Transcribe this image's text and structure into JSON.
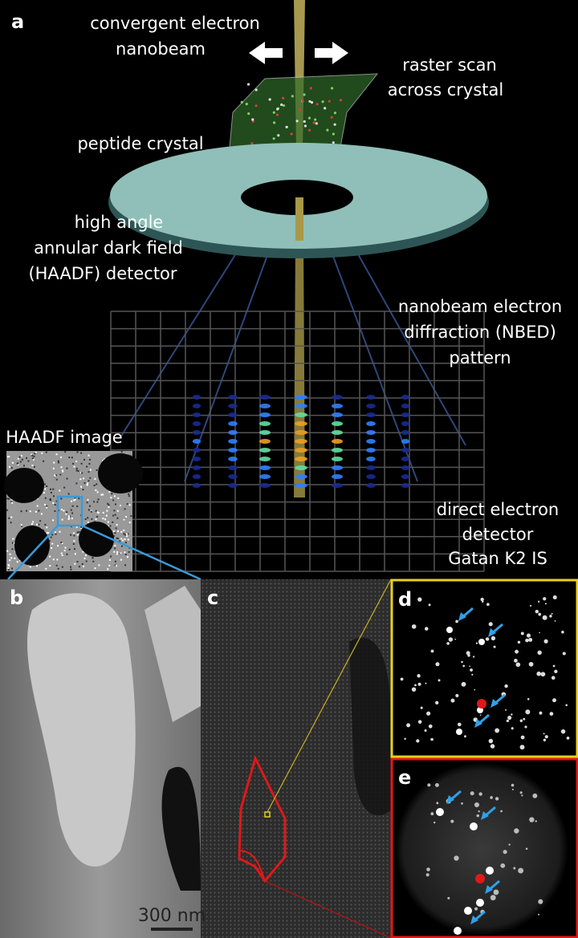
{
  "figure": {
    "panel_a": {
      "label": "a",
      "beam": [
        "convergent electron",
        "nanobeam"
      ],
      "raster": [
        "raster scan",
        "across crystal"
      ],
      "crystal": "peptide crystal",
      "haadf_detector": [
        "high angle",
        "annular dark field",
        "(HAADF) detector"
      ],
      "nbed": [
        "nanobeam electron",
        "diffraction (NBED)",
        "pattern"
      ],
      "haadf_image": "HAADF image",
      "direct_detector": [
        "direct electron",
        "detector",
        "Gatan K2 IS"
      ]
    },
    "panel_b": {
      "label": "b",
      "scale_bar": "300 nm"
    },
    "panel_c": {
      "label": "c"
    },
    "panel_d": {
      "label": "d"
    },
    "panel_e": {
      "label": "e"
    }
  }
}
